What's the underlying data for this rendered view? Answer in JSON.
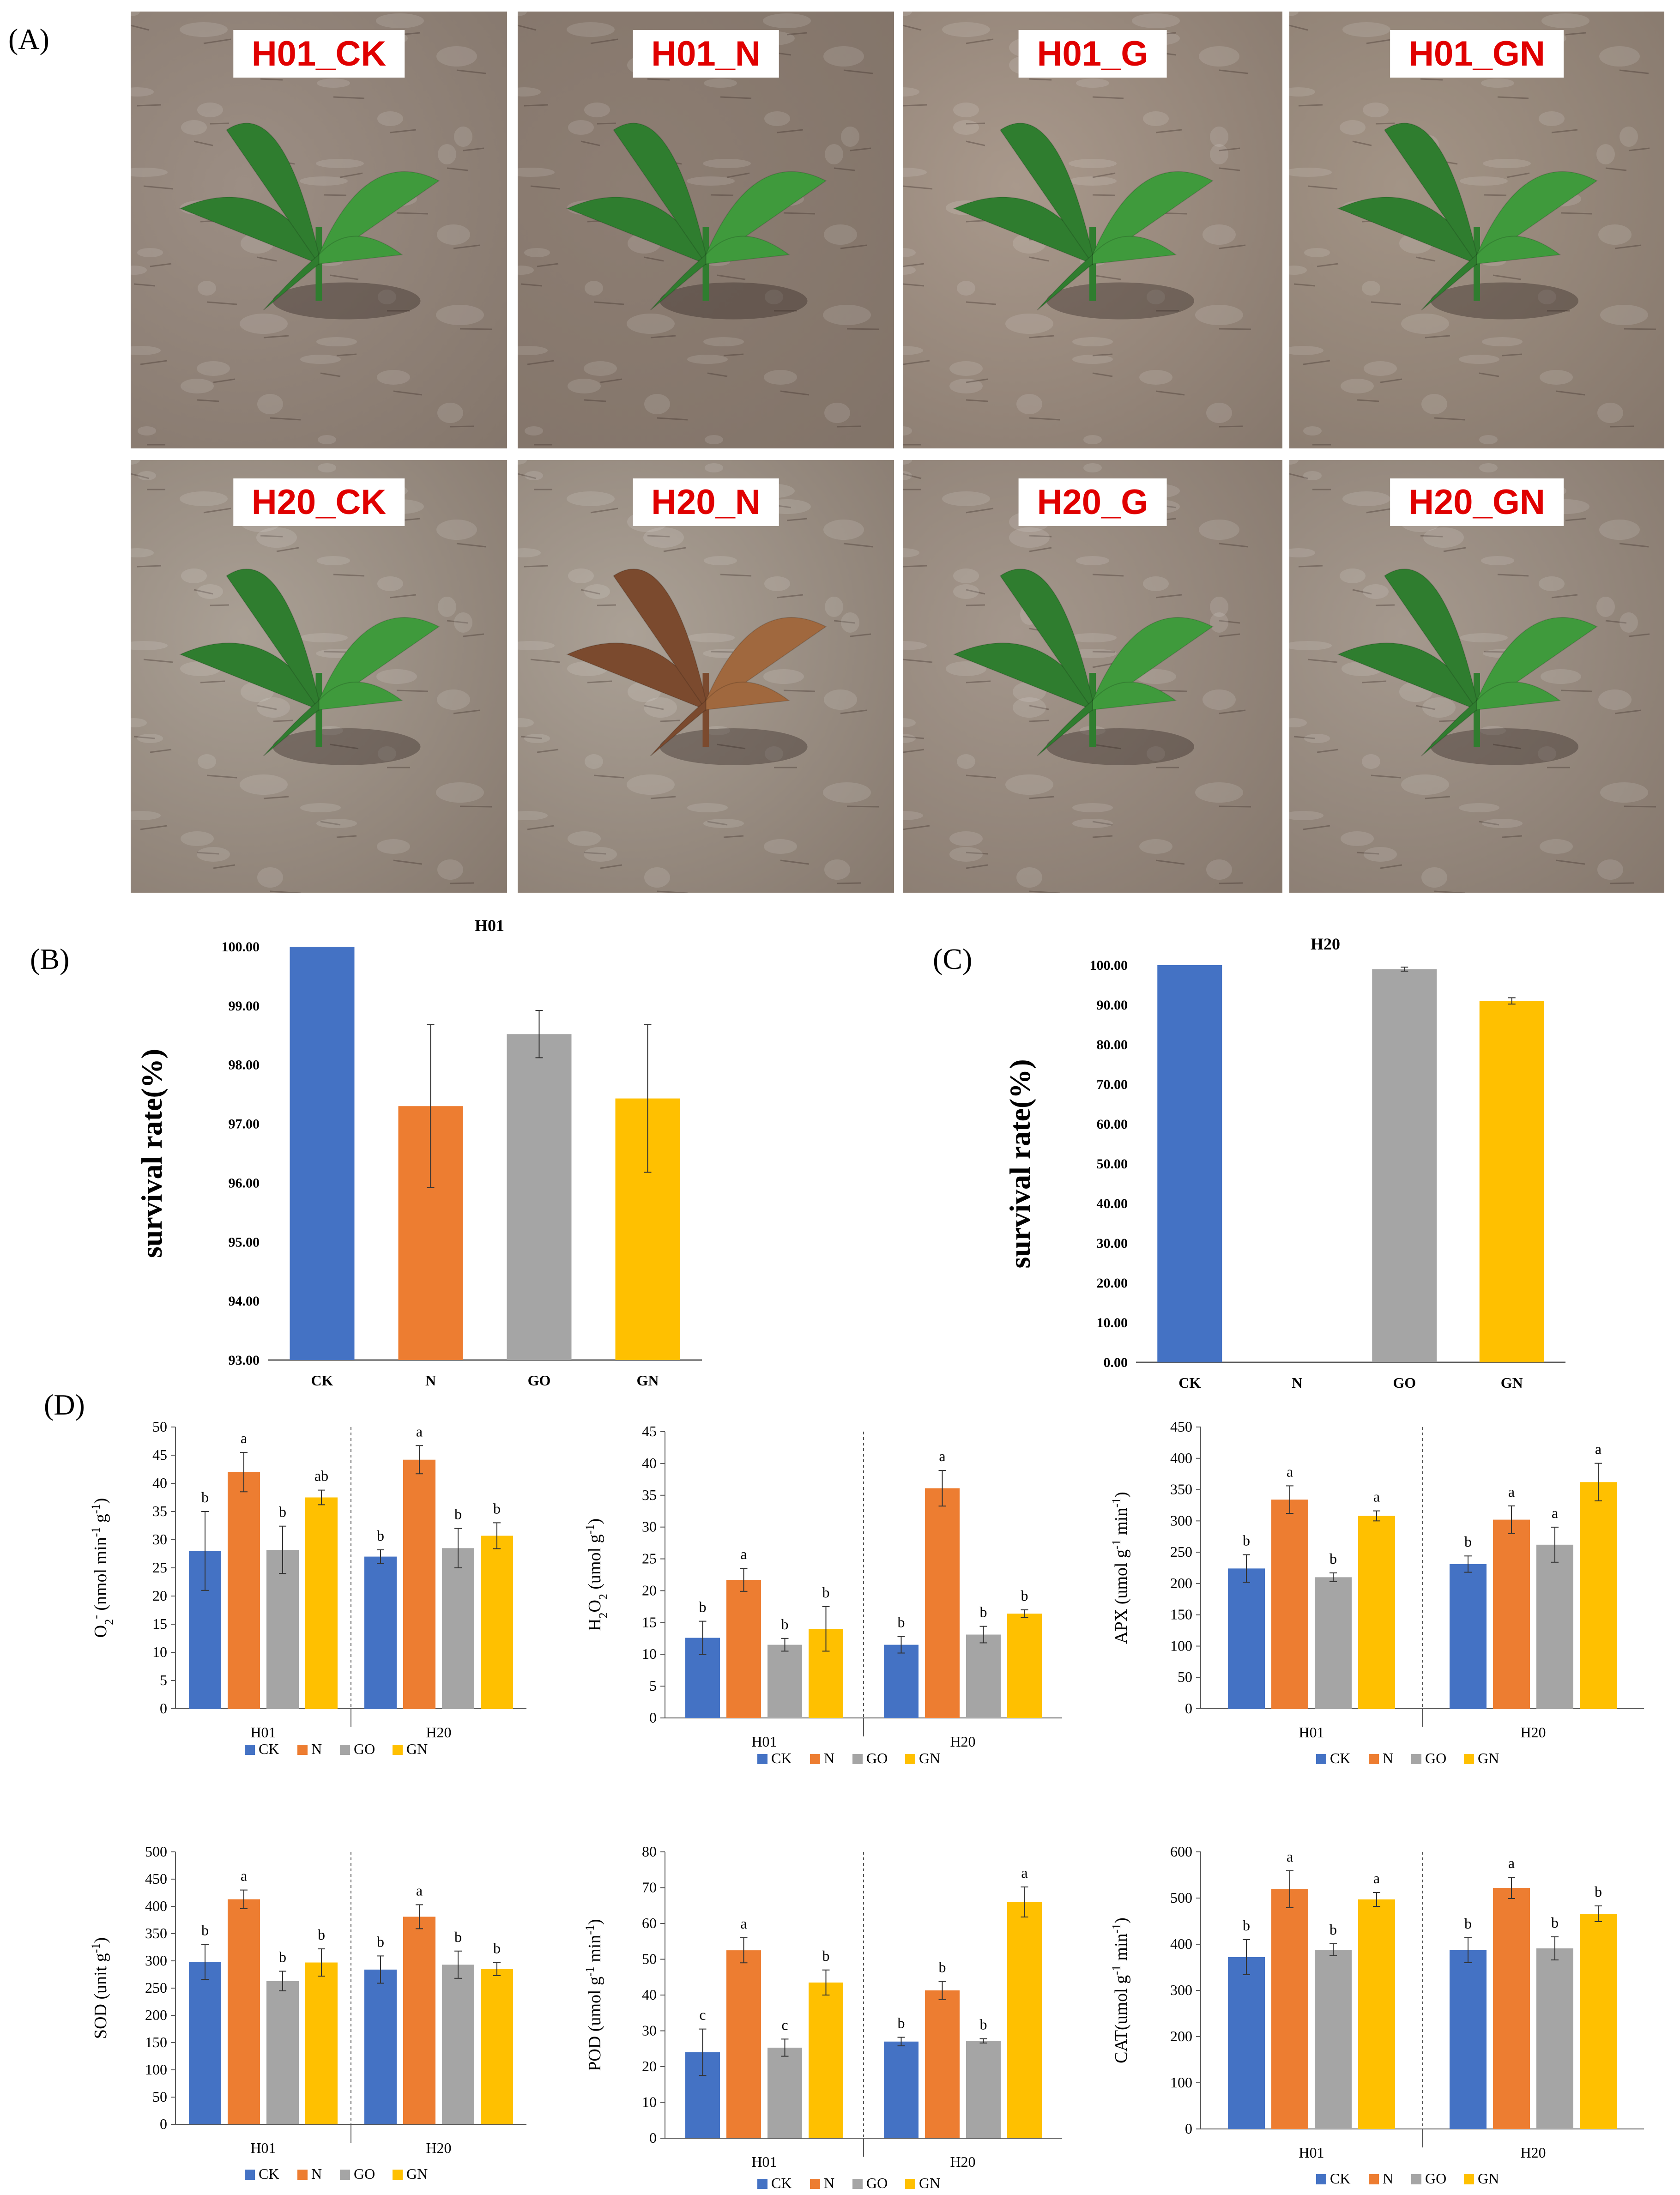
{
  "panel_letters": {
    "a": "(A)",
    "b": "(B)",
    "c": "(C)",
    "d": "(D)"
  },
  "photos": [
    {
      "label": "H01_CK",
      "soil": "#9c8e84",
      "plant": "healthy"
    },
    {
      "label": "H01_N",
      "soil": "#8d7e73",
      "plant": "healthy"
    },
    {
      "label": "H01_G",
      "soil": "#a9998c",
      "plant": "healthy"
    },
    {
      "label": "H01_GN",
      "soil": "#a39486",
      "plant": "healthy"
    },
    {
      "label": "H20_CK",
      "soil": "#aaa095",
      "plant": "healthy"
    },
    {
      "label": "H20_N",
      "soil": "#aba196",
      "plant": "withered"
    },
    {
      "label": "H20_G",
      "soil": "#a4978c",
      "plant": "healthy"
    },
    {
      "label": "H20_GN",
      "soil": "#a5998e",
      "plant": "healthy"
    }
  ],
  "colors": {
    "CK": "#4472c4",
    "N": "#ed7d31",
    "GO": "#a5a5a5",
    "GN": "#ffc000",
    "axis": "#595959",
    "grid": "#595959"
  },
  "legend": [
    "CK",
    "N",
    "GO",
    "GN"
  ],
  "chart_data": [
    {
      "id": "B",
      "type": "bar",
      "title": "H01",
      "ylabel": "survival rate(%)",
      "categories": [
        "CK",
        "N",
        "GO",
        "GN"
      ],
      "values": [
        100.0,
        97.3,
        98.52,
        97.43
      ],
      "errors": [
        0,
        1.38,
        0.4,
        1.25
      ],
      "ylim": [
        93,
        100
      ],
      "yticks": [
        93,
        94,
        95,
        96,
        97,
        98,
        99,
        100
      ],
      "tick_labels": [
        "93.00",
        "94.00",
        "95.00",
        "96.00",
        "97.00",
        "98.00",
        "99.00",
        "100.00"
      ]
    },
    {
      "id": "C",
      "type": "bar",
      "title": "H20",
      "ylabel": "survival rate(%)",
      "categories": [
        "CK",
        "N",
        "GO",
        "GN"
      ],
      "values": [
        100.0,
        0,
        99.0,
        91.0
      ],
      "errors": [
        0,
        0,
        0.5,
        0.8
      ],
      "ylim": [
        0,
        100
      ],
      "yticks": [
        0,
        10,
        20,
        30,
        40,
        50,
        60,
        70,
        80,
        90,
        100
      ],
      "tick_labels": [
        "0.00",
        "10.00",
        "20.00",
        "30.00",
        "40.00",
        "50.00",
        "60.00",
        "70.00",
        "80.00",
        "90.00",
        "100.00"
      ]
    },
    {
      "id": "O2",
      "type": "bar",
      "ylabel_main": "O",
      "ylabel_sub": "2",
      "ylabel_sup": "-",
      "ylabel_rest": " (nmol min",
      "ylabel_sup2": "-1",
      "ylabel_rest2": " g",
      "ylabel_sup3": "-1",
      "ylabel_end": ")",
      "groups": [
        "H01",
        "H20"
      ],
      "series": [
        "CK",
        "N",
        "GO",
        "GN"
      ],
      "values": [
        [
          28,
          42,
          28.2,
          37.5
        ],
        [
          27,
          44.2,
          28.5,
          30.7
        ]
      ],
      "errors": [
        [
          7,
          3.5,
          4.2,
          1.3
        ],
        [
          1.2,
          2.5,
          3.5,
          2.3
        ]
      ],
      "letters": [
        [
          "b",
          "a",
          "b",
          "ab"
        ],
        [
          "b",
          "a",
          "b",
          "b"
        ]
      ],
      "ylim": [
        0,
        50
      ],
      "yticks": [
        0,
        5,
        10,
        15,
        20,
        25,
        30,
        35,
        40,
        45,
        50
      ]
    },
    {
      "id": "H2O2",
      "type": "bar",
      "groups": [
        "H01",
        "H20"
      ],
      "series": [
        "CK",
        "N",
        "GO",
        "GN"
      ],
      "values": [
        [
          12.6,
          21.7,
          11.5,
          14
        ],
        [
          11.5,
          36.1,
          13.1,
          16.4
        ]
      ],
      "errors": [
        [
          2.6,
          1.8,
          1,
          3.5
        ],
        [
          1.3,
          2.8,
          1.3,
          0.6
        ]
      ],
      "letters": [
        [
          "b",
          "a",
          "b",
          "b"
        ],
        [
          "b",
          "a",
          "b",
          "b"
        ]
      ],
      "ylim": [
        0,
        45
      ],
      "yticks": [
        0,
        5,
        10,
        15,
        20,
        25,
        30,
        35,
        40,
        45
      ]
    },
    {
      "id": "APX",
      "type": "bar",
      "groups": [
        "H01",
        "H20"
      ],
      "series": [
        "CK",
        "N",
        "GO",
        "GN"
      ],
      "values": [
        [
          224,
          334,
          210,
          308
        ],
        [
          231,
          302,
          262,
          362
        ]
      ],
      "errors": [
        [
          22,
          22,
          7,
          8
        ],
        [
          13,
          22,
          28,
          30
        ]
      ],
      "letters": [
        [
          "b",
          "a",
          "b",
          "a"
        ],
        [
          "b",
          "a",
          "a",
          "a"
        ]
      ],
      "ylim": [
        0,
        450
      ],
      "yticks": [
        0,
        50,
        100,
        150,
        200,
        250,
        300,
        350,
        400,
        450
      ]
    },
    {
      "id": "SOD",
      "type": "bar",
      "groups": [
        "H01",
        "H20"
      ],
      "series": [
        "CK",
        "N",
        "GO",
        "GN"
      ],
      "values": [
        [
          298,
          413,
          263,
          297
        ],
        [
          284,
          381,
          293,
          285
        ]
      ],
      "errors": [
        [
          32,
          17,
          18,
          25
        ],
        [
          25,
          22,
          25,
          12
        ]
      ],
      "letters": [
        [
          "b",
          "a",
          "b",
          "b"
        ],
        [
          "b",
          "a",
          "b",
          "b"
        ]
      ],
      "ylim": [
        0,
        500
      ],
      "yticks": [
        0,
        50,
        100,
        150,
        200,
        250,
        300,
        350,
        400,
        450,
        500
      ]
    },
    {
      "id": "POD",
      "type": "bar",
      "groups": [
        "H01",
        "H20"
      ],
      "series": [
        "CK",
        "N",
        "GO",
        "GN"
      ],
      "values": [
        [
          24,
          52.5,
          25.3,
          43.5
        ],
        [
          27,
          41.3,
          27.2,
          66
        ]
      ],
      "errors": [
        [
          6.5,
          3.5,
          2.4,
          3.5
        ],
        [
          1.2,
          2.5,
          0.6,
          4.2
        ]
      ],
      "letters": [
        [
          "c",
          "a",
          "c",
          "b"
        ],
        [
          "b",
          "b",
          "b",
          "a"
        ]
      ],
      "ylim": [
        0,
        80
      ],
      "yticks": [
        0,
        10,
        20,
        30,
        40,
        50,
        60,
        70,
        80
      ]
    },
    {
      "id": "CAT",
      "type": "bar",
      "groups": [
        "H01",
        "H20"
      ],
      "series": [
        "CK",
        "N",
        "GO",
        "GN"
      ],
      "values": [
        [
          372,
          519,
          388,
          497
        ],
        [
          387,
          522,
          391,
          466
        ]
      ],
      "errors": [
        [
          38,
          40,
          13,
          15
        ],
        [
          27,
          23,
          25,
          17
        ]
      ],
      "letters": [
        [
          "b",
          "a",
          "b",
          "a"
        ],
        [
          "b",
          "a",
          "b",
          "b"
        ]
      ],
      "ylim": [
        0,
        600
      ],
      "yticks": [
        0,
        100,
        200,
        300,
        400,
        500,
        600
      ]
    }
  ],
  "d_labels": {
    "H2O2": {
      "main": "H",
      "sub1": "2",
      "mid": "O",
      "sub2": "2",
      "rest": " (umol g",
      "sup": "-1",
      "end": ")"
    },
    "APX": {
      "main": "APX (umol g",
      "sup1": "-1",
      "mid": " min",
      "sup2": "-1",
      "end": ")"
    },
    "SOD": {
      "main": "SOD (unit g",
      "sup": "-1",
      "end": ")"
    },
    "POD": {
      "main": "POD (umol g",
      "sup1": "-1",
      "mid": " min",
      "sup2": "-1",
      "end": ")"
    },
    "CAT": {
      "main": "CAT(umol g",
      "sup1": "-1",
      "mid": " min",
      "sup2": "-1",
      "end": ")"
    }
  }
}
